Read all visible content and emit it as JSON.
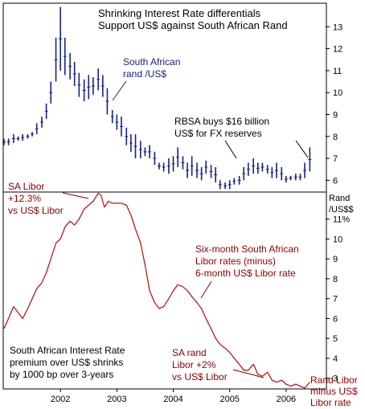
{
  "chart_data": [
    {
      "type": "bar",
      "subtype": "ohlc",
      "title": "Shrinking Interest Rate differentials Support US$ against South African Rand",
      "title_lines": [
        "Shrinking Interest Rate differentials",
        "Support US$ against South African Rand"
      ],
      "axis_unit": "Rand /US$$",
      "axis_unit_lines": [
        "Rand",
        "/US$$"
      ],
      "y_axis_side": "right",
      "ylim": [
        5.5,
        14
      ],
      "y_ticks": [
        6,
        7,
        8,
        9,
        10,
        11,
        12,
        13
      ],
      "grid": false,
      "annotations": [
        {
          "lines": [
            "South African",
            "rand /US$"
          ],
          "color": "#1a237e"
        },
        {
          "lines": [
            "RBSA buys $16 billion",
            "US$ for FX reserves"
          ],
          "color": "#000000"
        }
      ],
      "series": [
        {
          "color": "#1a237e",
          "x": [
            2001.0,
            2001.08,
            2001.17,
            2001.25,
            2001.33,
            2001.42,
            2001.5,
            2001.58,
            2001.67,
            2001.75,
            2001.83,
            2001.92,
            2002.0,
            2002.08,
            2002.17,
            2002.25,
            2002.33,
            2002.42,
            2002.5,
            2002.58,
            2002.67,
            2002.75,
            2002.83,
            2002.92,
            2003.0,
            2003.08,
            2003.17,
            2003.25,
            2003.33,
            2003.42,
            2003.5,
            2003.58,
            2003.67,
            2003.75,
            2003.83,
            2003.92,
            2004.0,
            2004.08,
            2004.17,
            2004.25,
            2004.33,
            2004.42,
            2004.5,
            2004.58,
            2004.67,
            2004.75,
            2004.83,
            2004.92,
            2005.0,
            2005.08,
            2005.17,
            2005.25,
            2005.33,
            2005.42,
            2005.5,
            2005.58,
            2005.67,
            2005.75,
            2005.83,
            2005.92,
            2006.0,
            2006.08,
            2006.17,
            2006.25,
            2006.33,
            2006.42
          ],
          "high": [
            7.9,
            7.9,
            8.1,
            8.0,
            8.1,
            8.1,
            8.2,
            8.6,
            8.9,
            9.5,
            10.5,
            12.5,
            13.9,
            12.5,
            11.8,
            11.4,
            10.9,
            10.6,
            10.8,
            10.7,
            11.1,
            10.8,
            10.2,
            9.2,
            9.0,
            8.9,
            8.4,
            8.1,
            8.1,
            7.8,
            7.5,
            7.6,
            7.3,
            6.8,
            6.8,
            7.0,
            7.1,
            7.5,
            7.1,
            6.8,
            7.1,
            6.8,
            6.6,
            6.9,
            6.7,
            6.6,
            6.0,
            5.9,
            6.0,
            6.1,
            6.2,
            6.6,
            6.8,
            7.0,
            6.8,
            6.8,
            6.7,
            6.6,
            6.8,
            6.6,
            6.2,
            6.2,
            6.3,
            6.3,
            6.8,
            7.5
          ],
          "low": [
            7.6,
            7.6,
            7.7,
            7.8,
            7.8,
            7.9,
            8.0,
            8.1,
            8.4,
            8.8,
            9.5,
            10.5,
            11.0,
            10.8,
            10.6,
            10.3,
            9.8,
            9.6,
            9.7,
            9.9,
            10.1,
            9.8,
            9.0,
            8.6,
            8.3,
            8.0,
            7.6,
            7.3,
            7.0,
            7.0,
            7.1,
            7.0,
            6.7,
            6.5,
            6.4,
            6.3,
            6.4,
            6.6,
            6.5,
            6.1,
            6.2,
            6.1,
            6.0,
            6.3,
            6.1,
            5.9,
            5.6,
            5.6,
            5.6,
            5.8,
            5.8,
            6.0,
            6.2,
            6.3,
            6.3,
            6.4,
            6.3,
            6.1,
            6.1,
            6.0,
            5.9,
            6.0,
            6.0,
            6.0,
            6.1,
            6.4
          ]
        }
      ]
    },
    {
      "type": "line",
      "title": "Six-month South African Libor rates (minus) 6-month US$ Libor rate",
      "axis_unit": "%",
      "y_axis_side": "right",
      "ylim": [
        2.5,
        12.2
      ],
      "y_ticks": [
        3,
        4,
        5,
        6,
        7,
        8,
        9,
        10,
        11
      ],
      "y_tick_labels": [
        "3",
        "4",
        "5",
        "6",
        "7",
        "8",
        "9",
        "10",
        "11%"
      ],
      "x_ticks": [
        2002,
        2003,
        2004,
        2005,
        2006
      ],
      "x_tick_labels": [
        "2002",
        "2003",
        "2004",
        "2005",
        "2006"
      ],
      "grid": false,
      "annotations": [
        {
          "lines": [
            "SA Libor",
            "+12.3%",
            "vs US$ Libor"
          ],
          "color": "#8b0000"
        },
        {
          "lines": [
            "Six-month South African",
            "Libor rates (minus)",
            "6-month US$ Libor rate"
          ],
          "color": "#8b0000"
        },
        {
          "lines": [
            "SA rand",
            "Libor +2%",
            "vs US$ Libor"
          ],
          "color": "#8b0000"
        },
        {
          "lines": [
            "Rand Libor",
            "minus US$",
            "Libor rate"
          ],
          "color": "#8b0000"
        },
        {
          "lines": [
            "South African Interest Rate",
            "premium over US$ shrinks",
            "by 1000 bp over 3-years"
          ],
          "color": "#000000"
        }
      ],
      "series": [
        {
          "color": "#b71c1c",
          "x": [
            2001.0,
            2001.08,
            2001.17,
            2001.25,
            2001.33,
            2001.42,
            2001.5,
            2001.58,
            2001.67,
            2001.75,
            2001.83,
            2001.92,
            2002.0,
            2002.08,
            2002.17,
            2002.25,
            2002.33,
            2002.42,
            2002.5,
            2002.58,
            2002.67,
            2002.72,
            2002.78,
            2002.85,
            2002.92,
            2003.0,
            2003.08,
            2003.17,
            2003.25,
            2003.33,
            2003.42,
            2003.5,
            2003.58,
            2003.67,
            2003.75,
            2003.83,
            2003.92,
            2004.0,
            2004.08,
            2004.17,
            2004.25,
            2004.33,
            2004.42,
            2004.5,
            2004.58,
            2004.67,
            2004.75,
            2004.83,
            2004.92,
            2005.0,
            2005.08,
            2005.17,
            2005.25,
            2005.33,
            2005.42,
            2005.5,
            2005.58,
            2005.67,
            2005.75,
            2005.83,
            2005.92,
            2006.0,
            2006.08,
            2006.17,
            2006.25,
            2006.33,
            2006.42
          ],
          "values": [
            5.5,
            6.0,
            6.6,
            6.3,
            6.0,
            6.5,
            7.0,
            7.5,
            7.8,
            8.3,
            9.0,
            9.8,
            10.0,
            10.6,
            10.9,
            10.7,
            11.0,
            11.5,
            11.7,
            11.9,
            12.3,
            12.2,
            11.6,
            11.9,
            11.8,
            11.8,
            11.8,
            11.7,
            11.2,
            10.5,
            9.8,
            8.7,
            7.4,
            6.8,
            6.5,
            6.6,
            7.0,
            7.4,
            7.7,
            7.6,
            7.4,
            7.1,
            6.8,
            6.5,
            6.0,
            5.5,
            5.0,
            4.7,
            4.5,
            4.3,
            4.0,
            3.7,
            3.4,
            3.4,
            3.7,
            3.2,
            3.1,
            3.3,
            2.9,
            2.8,
            2.9,
            2.7,
            2.6,
            2.7,
            2.6,
            2.5,
            2.8
          ]
        }
      ]
    }
  ]
}
